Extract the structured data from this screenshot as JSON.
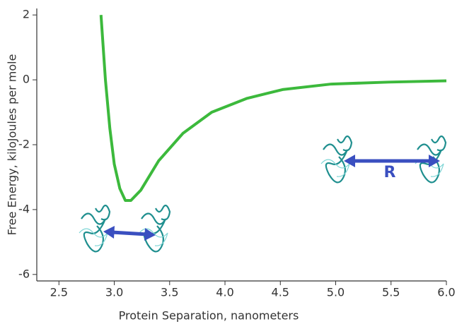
{
  "chart_data": {
    "type": "line",
    "x_label": "Protein Separation, nanometers",
    "y_label": "Free Energy, kiloJoules per mole",
    "annotation": "R",
    "xlim": [
      2.3,
      6.0
    ],
    "ylim": [
      -6.2,
      2.2
    ],
    "xticks": [
      2.5,
      {
        "value": 3,
        "label": "3.0"
      },
      3.5,
      {
        "value": 4,
        "label": "4.0"
      },
      4.5,
      {
        "value": 5,
        "label": "5.0"
      },
      5.5,
      {
        "value": 6,
        "label": "6.0"
      }
    ],
    "yticks": [
      -6,
      -4,
      -2,
      0,
      2
    ],
    "x": [
      2.88,
      2.92,
      2.96,
      3.0,
      3.05,
      3.1,
      3.15,
      3.24,
      3.4,
      3.62,
      3.88,
      4.2,
      4.52,
      4.96,
      5.48,
      6.0
    ],
    "series": [
      {
        "color": "#3cb93c",
        "values": [
          2.0,
          0.0,
          -1.5,
          -2.6,
          -3.35,
          -3.72,
          -3.72,
          -3.4,
          -2.5,
          -1.65,
          -1.0,
          -0.57,
          -0.3,
          -0.13,
          -0.07,
          -0.03
        ]
      }
    ]
  }
}
